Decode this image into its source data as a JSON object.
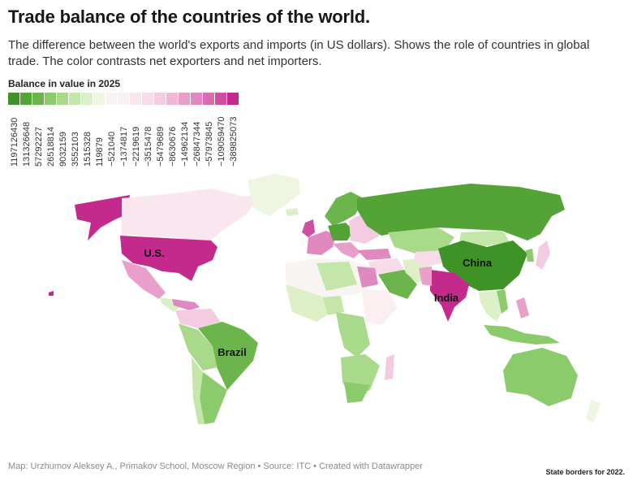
{
  "title": "Trade balance of the countries of the world.",
  "subtitle": "The difference between the world's exports and imports (in US dollars). Shows the role of countries in global trade. The color contrasts net exporters and net importers.",
  "legend": {
    "title": "Balance in value in 2025",
    "labels": [
      "1197126430",
      "131326648",
      "57292227",
      "26518814",
      "9032159",
      "3552103",
      "1515328",
      "119879",
      "−521040",
      "−1374817",
      "−2219619",
      "−3515478",
      "−5479689",
      "−8630676",
      "−14962134",
      "−26847344",
      "−57973845",
      "−109059470",
      "−389825073"
    ],
    "colors": [
      "#3f9326",
      "#54a336",
      "#6bb54c",
      "#8ccb6c",
      "#a9d98b",
      "#c4e6a8",
      "#dcefc7",
      "#eef6e2",
      "#f8f4f2",
      "#fbeff2",
      "#fae6ee",
      "#f8dbe9",
      "#f4cce2",
      "#efb8d7",
      "#e8a0ca",
      "#e089c0",
      "#d66db0",
      "#cc4fa1",
      "#c42a8b"
    ]
  },
  "labels": {
    "us": "U.S.",
    "brazil": "Brazil",
    "china": "China",
    "india": "India"
  },
  "footer": "Map: Urzhumov Aleksey A., Primakov School, Moscow Region • Source: ITC • Created with Datawrapper",
  "note": "State borders for 2022."
}
